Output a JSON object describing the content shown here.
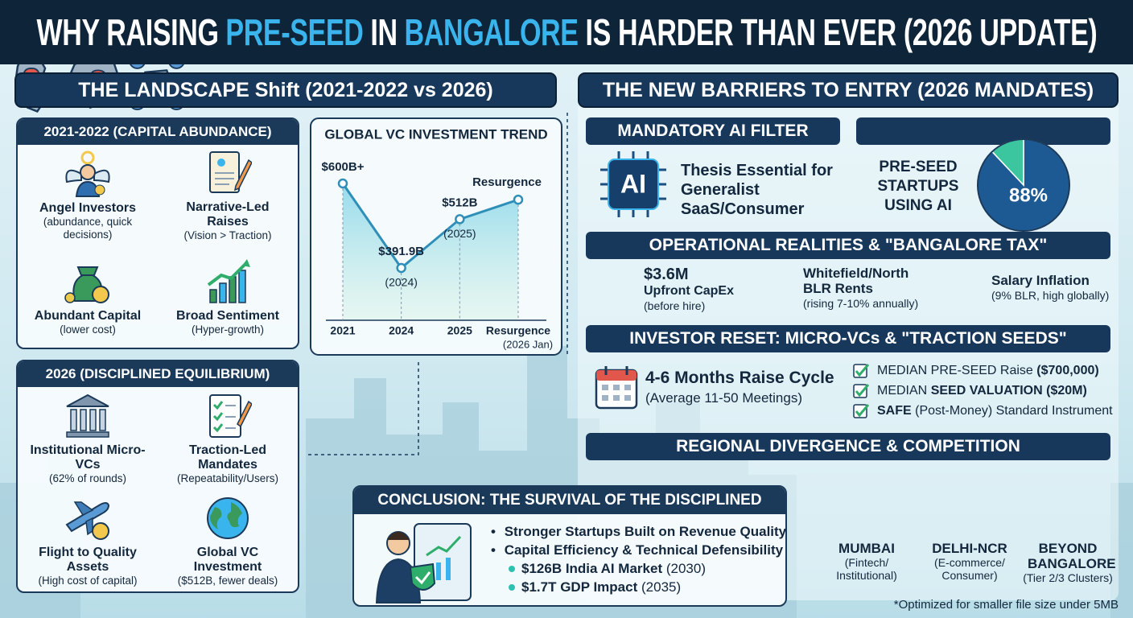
{
  "title": {
    "parts": [
      {
        "text": "WHY RAISING"
      },
      {
        "text": "PRE-SEED",
        "highlight": true
      },
      {
        "text": "IN"
      },
      {
        "text": "BANGALORE",
        "highlight": true
      },
      {
        "text": "IS HARDER THAN EVER (2026 UPDATE)"
      }
    ]
  },
  "landscape": {
    "title": "THE LANDSCAPE Shift (2021-2022 vs 2026)",
    "abundance": {
      "heading": "2021-2022 (CAPITAL ABUNDANCE)",
      "items": [
        {
          "label": "Angel Investors",
          "sub": "(abundance, quick decisions)"
        },
        {
          "label": "Narrative-Led Raises",
          "sub": "(Vision > Traction)"
        },
        {
          "label": "Abundant Capital",
          "sub": "(lower cost)"
        },
        {
          "label": "Broad Sentiment",
          "sub": "(Hyper-growth)"
        }
      ]
    },
    "equilibrium": {
      "heading": "2026 (DISCIPLINED EQUILIBRIUM)",
      "items": [
        {
          "label": "Institutional Micro-VCs",
          "sub": "(62% of rounds)"
        },
        {
          "label": "Traction-Led Mandates",
          "sub": "(Repeatability/Users)"
        },
        {
          "label": "Flight to Quality Assets",
          "sub": "(High cost of capital)"
        },
        {
          "label": "Global VC Investment",
          "sub": "($512B, fewer deals)"
        }
      ]
    }
  },
  "chart_data": [
    {
      "type": "line",
      "title": "GLOBAL VC INVESTMENT TREND",
      "categories": [
        "2021",
        "2024",
        "2025",
        "Resurgence"
      ],
      "category_notes": [
        null,
        null,
        null,
        "(2026 Jan)"
      ],
      "values": [
        600,
        391.9,
        512,
        560
      ],
      "value_labels": [
        "$600B+",
        "$391.9B",
        "$512B",
        null
      ],
      "point_notes": [
        null,
        "(2024)",
        "(2025)",
        "Resurgence"
      ],
      "color": "#2f8fb8"
    },
    {
      "type": "pie",
      "title": "PRE-SEED STARTUPS USING AI",
      "values": [
        88,
        12
      ],
      "value_labels": [
        "88%",
        null
      ],
      "colors": [
        "#1d5a94",
        "#3cc6a0"
      ]
    }
  ],
  "barriers": {
    "title": "THE NEW BARRIERS TO ENTRY (2026 MANDATES)",
    "ai_filter": {
      "heading": "MANDATORY AI FILTER",
      "icon_label": "AI",
      "text": "Thesis Essential for Generalist SaaS/Consumer"
    },
    "operational": {
      "heading": "OPERATIONAL REALITIES & \"BANGALORE TAX\"",
      "items": [
        {
          "title": "$3.6M",
          "subtitle": "Upfront CapEx",
          "note": "(before hire)"
        },
        {
          "title": "Whitefield/North BLR Rents",
          "note": "(rising 7-10% annually)"
        },
        {
          "title": "Salary Inflation",
          "note": "(9% BLR, high globally)"
        }
      ]
    },
    "investor_reset": {
      "heading": "INVESTOR RESET: MICRO-VCs & \"TRACTION SEEDS\"",
      "cycle": "4-6 Months Raise Cycle",
      "cycle_note": "(Average 11-50 Meetings)",
      "checklist": [
        [
          {
            "text": "MEDIAN PRE-SEED Raise"
          },
          {
            "text": "($700,000)",
            "bold": true
          }
        ],
        [
          {
            "text": "MEDIAN"
          },
          {
            "text": "SEED VALUATION ($20M)",
            "bold": true
          }
        ],
        [
          {
            "text": "SAFE",
            "bold": true
          },
          {
            "text": "(Post-Money) Standard Instrument"
          }
        ]
      ]
    },
    "regional": {
      "heading": "REGIONAL DIVERGENCE & COMPETITION",
      "items": [
        {
          "name": "MUMBAI",
          "sub": "(Fintech/ Institutional)"
        },
        {
          "name": "DELHI-NCR",
          "sub": "(E-commerce/ Consumer)"
        },
        {
          "name": "BEYOND BANGALORE",
          "sub": "(Tier 2/3 Clusters)"
        }
      ]
    }
  },
  "conclusion": {
    "heading": "CONCLUSION: THE SURVIVAL OF THE DISCIPLINED",
    "bullets": [
      "Stronger Startups Built on Revenue Quality",
      "Capital Efficiency & Technical Defensibility"
    ],
    "sub_bullets": [
      [
        {
          "text": "$126B India AI Market",
          "bold": true
        },
        {
          "text": "(2030)"
        }
      ],
      [
        {
          "text": "$1.7T GDP Impact",
          "bold": true
        },
        {
          "text": "(2035)"
        }
      ]
    ]
  },
  "footnote": "*Optimized for smaller file size under 5MB"
}
